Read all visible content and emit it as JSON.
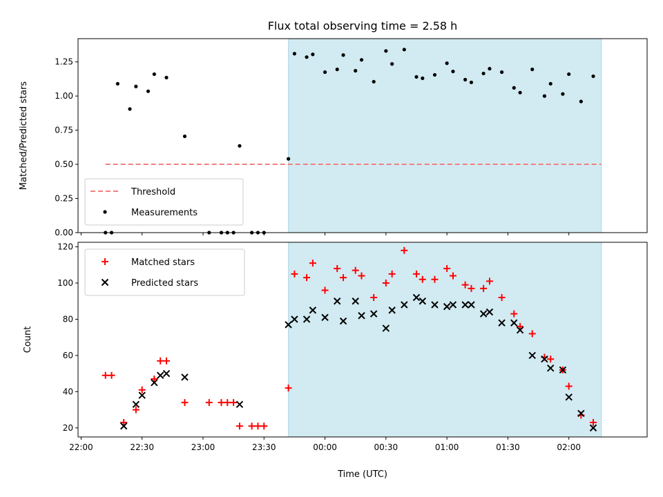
{
  "chart_data": [
    {
      "type": "scatter",
      "title": "Flux total observing time = 2.58 h",
      "ylabel": "Matched/Predicted stars",
      "xlabel": "",
      "ylim": [
        0,
        1.42
      ],
      "yticks": [
        "0.00",
        "0.25",
        "0.50",
        "0.75",
        "1.00",
        "1.25"
      ],
      "ytick_values": [
        0,
        0.25,
        0.5,
        0.75,
        1.0,
        1.25
      ],
      "legend_position": "lower-left",
      "highlight_span": {
        "start": "23:42",
        "end": "02:16",
        "color": "#add8e6"
      },
      "threshold": {
        "name": "Threshold",
        "value": 0.5,
        "start": "22:12",
        "end": "02:16",
        "color": "#f08080"
      },
      "series": [
        {
          "name": "Measurements",
          "color": "#000000",
          "marker": "dot",
          "points": [
            [
              "22:12",
              0
            ],
            [
              "22:15",
              0
            ],
            [
              "22:18",
              1.09
            ],
            [
              "22:24",
              0.905
            ],
            [
              "22:27",
              1.07
            ],
            [
              "22:33",
              1.035
            ],
            [
              "22:36",
              1.16
            ],
            [
              "22:42",
              1.135
            ],
            [
              "22:51",
              0.705
            ],
            [
              "23:03",
              0
            ],
            [
              "23:09",
              0
            ],
            [
              "23:12",
              0
            ],
            [
              "23:15",
              0
            ],
            [
              "23:18",
              0.635
            ],
            [
              "23:24",
              0
            ],
            [
              "23:27",
              0
            ],
            [
              "23:30",
              0
            ],
            [
              "23:42",
              0.54
            ],
            [
              "23:45",
              1.31
            ],
            [
              "23:51",
              1.285
            ],
            [
              "23:54",
              1.305
            ],
            [
              "00:00",
              1.175
            ],
            [
              "00:06",
              1.195
            ],
            [
              "00:09",
              1.3
            ],
            [
              "00:15",
              1.185
            ],
            [
              "00:18",
              1.265
            ],
            [
              "00:24",
              1.105
            ],
            [
              "00:30",
              1.33
            ],
            [
              "00:33",
              1.235
            ],
            [
              "00:39",
              1.34
            ],
            [
              "00:45",
              1.14
            ],
            [
              "00:48",
              1.13
            ],
            [
              "00:54",
              1.155
            ],
            [
              "01:00",
              1.24
            ],
            [
              "01:03",
              1.18
            ],
            [
              "01:09",
              1.12
            ],
            [
              "01:12",
              1.1
            ],
            [
              "01:18",
              1.165
            ],
            [
              "01:21",
              1.2
            ],
            [
              "01:27",
              1.175
            ],
            [
              "01:33",
              1.06
            ],
            [
              "01:36",
              1.025
            ],
            [
              "01:42",
              1.195
            ],
            [
              "01:48",
              1.0
            ],
            [
              "01:51",
              1.09
            ],
            [
              "01:57",
              1.015
            ],
            [
              "02:00",
              1.16
            ],
            [
              "02:06",
              0.96
            ],
            [
              "02:12",
              1.145
            ]
          ]
        }
      ]
    },
    {
      "type": "scatter",
      "title": "",
      "ylabel": "Count",
      "xlabel": "Time (UTC)",
      "ylim": [
        15,
        122.5
      ],
      "yticks": [
        "20",
        "40",
        "60",
        "80",
        "100",
        "120"
      ],
      "ytick_values": [
        20,
        40,
        60,
        80,
        100,
        120
      ],
      "xticks": [
        "22:00",
        "22:30",
        "23:00",
        "23:30",
        "00:00",
        "00:30",
        "01:00",
        "01:30",
        "02:00"
      ],
      "xtick_values": [
        "22:00",
        "22:30",
        "23:00",
        "23:30",
        "00:00",
        "00:30",
        "01:00",
        "01:30",
        "02:00"
      ],
      "legend_position": "upper-left",
      "highlight_span": {
        "start": "23:42",
        "end": "02:16",
        "color": "#add8e6"
      },
      "series": [
        {
          "name": "Matched stars",
          "color": "#ff0000",
          "marker": "plus",
          "points": [
            [
              "22:12",
              49
            ],
            [
              "22:15",
              49
            ],
            [
              "22:21",
              23
            ],
            [
              "22:27",
              30
            ],
            [
              "22:30",
              41
            ],
            [
              "22:36",
              47
            ],
            [
              "22:39",
              57
            ],
            [
              "22:42",
              57
            ],
            [
              "22:51",
              34
            ],
            [
              "23:03",
              34
            ],
            [
              "23:09",
              34
            ],
            [
              "23:12",
              34
            ],
            [
              "23:15",
              34
            ],
            [
              "23:18",
              21
            ],
            [
              "23:24",
              21
            ],
            [
              "23:27",
              21
            ],
            [
              "23:30",
              21
            ],
            [
              "23:42",
              42
            ],
            [
              "23:45",
              105
            ],
            [
              "23:51",
              103
            ],
            [
              "23:54",
              111
            ],
            [
              "00:00",
              96
            ],
            [
              "00:06",
              108
            ],
            [
              "00:09",
              103
            ],
            [
              "00:15",
              107
            ],
            [
              "00:18",
              104
            ],
            [
              "00:24",
              92
            ],
            [
              "00:30",
              100
            ],
            [
              "00:33",
              105
            ],
            [
              "00:39",
              118
            ],
            [
              "00:45",
              105
            ],
            [
              "00:48",
              102
            ],
            [
              "00:54",
              102
            ],
            [
              "01:00",
              108
            ],
            [
              "01:03",
              104
            ],
            [
              "01:09",
              99
            ],
            [
              "01:12",
              97
            ],
            [
              "01:18",
              97
            ],
            [
              "01:21",
              101
            ],
            [
              "01:27",
              92
            ],
            [
              "01:33",
              83
            ],
            [
              "01:36",
              76
            ],
            [
              "01:42",
              72
            ],
            [
              "01:48",
              59
            ],
            [
              "01:51",
              58
            ],
            [
              "01:57",
              52
            ],
            [
              "02:00",
              43
            ],
            [
              "02:06",
              27
            ],
            [
              "02:12",
              23
            ]
          ]
        },
        {
          "name": "Predicted stars",
          "color": "#000000",
          "marker": "x",
          "points": [
            [
              "22:21",
              21
            ],
            [
              "22:27",
              33
            ],
            [
              "22:30",
              38
            ],
            [
              "22:36",
              45
            ],
            [
              "22:39",
              49
            ],
            [
              "22:42",
              50
            ],
            [
              "22:51",
              48
            ],
            [
              "23:18",
              33
            ],
            [
              "23:42",
              77
            ],
            [
              "23:45",
              80
            ],
            [
              "23:51",
              80
            ],
            [
              "23:54",
              85
            ],
            [
              "00:00",
              81
            ],
            [
              "00:06",
              90
            ],
            [
              "00:09",
              79
            ],
            [
              "00:15",
              90
            ],
            [
              "00:18",
              82
            ],
            [
              "00:24",
              83
            ],
            [
              "00:30",
              75
            ],
            [
              "00:33",
              85
            ],
            [
              "00:39",
              88
            ],
            [
              "00:45",
              92
            ],
            [
              "00:48",
              90
            ],
            [
              "00:54",
              88
            ],
            [
              "01:00",
              87
            ],
            [
              "01:03",
              88
            ],
            [
              "01:09",
              88
            ],
            [
              "01:12",
              88
            ],
            [
              "01:18",
              83
            ],
            [
              "01:21",
              84
            ],
            [
              "01:27",
              78
            ],
            [
              "01:33",
              78
            ],
            [
              "01:36",
              74
            ],
            [
              "01:42",
              60
            ],
            [
              "01:48",
              58
            ],
            [
              "01:51",
              53
            ],
            [
              "01:57",
              52
            ],
            [
              "02:00",
              37
            ],
            [
              "02:06",
              28
            ],
            [
              "02:12",
              20
            ]
          ]
        }
      ]
    }
  ]
}
